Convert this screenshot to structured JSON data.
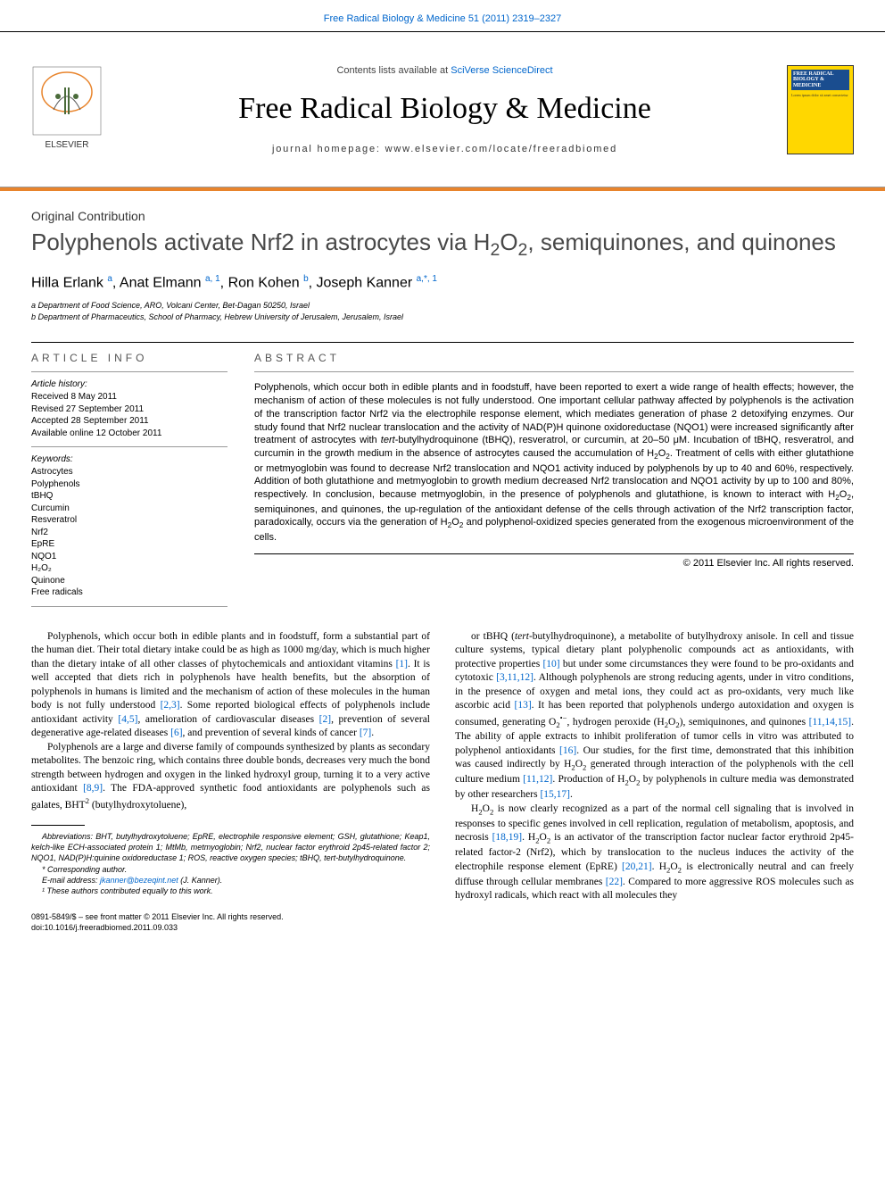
{
  "journal": {
    "top_citation_pre": "Free Radical Biology & Medicine 51 (2011) 2319–2327",
    "contents_line_pre": "Contents lists available at ",
    "contents_line_link": "SciVerse ScienceDirect",
    "name": "Free Radical Biology & Medicine",
    "homepage": "journal homepage: www.elsevier.com/locate/freeradbiomed",
    "cover_label": "FREE RADICAL BIOLOGY & MEDICINE"
  },
  "article": {
    "type": "Original Contribution",
    "title_html": "Polyphenols activate Nrf2 in astrocytes via H<sub>2</sub>O<sub>2</sub>, semiquinones, and quinones",
    "authors_html": "Hilla Erlank <sup>a</sup>, Anat Elmann <sup>a, 1</sup>, Ron Kohen <sup>b</sup>, Joseph Kanner <sup>a,*, 1</sup>",
    "affiliations": [
      "a Department of Food Science, ARO, Volcani Center, Bet-Dagan 50250, Israel",
      "b Department of Pharmaceutics, School of Pharmacy, Hebrew University of Jerusalem, Jerusalem, Israel"
    ],
    "info_head": "ARTICLE INFO",
    "history_label": "Article history:",
    "history": [
      "Received 8 May 2011",
      "Revised 27 September 2011",
      "Accepted 28 September 2011",
      "Available online 12 October 2011"
    ],
    "keywords_label": "Keywords:",
    "keywords": [
      "Astrocytes",
      "Polyphenols",
      "tBHQ",
      "Curcumin",
      "Resveratrol",
      "Nrf2",
      "EpRE",
      "NQO1",
      "H₂O₂",
      "Quinone",
      "Free radicals"
    ],
    "abstract_head": "ABSTRACT",
    "abstract_html": "Polyphenols, which occur both in edible plants and in foodstuff, have been reported to exert a wide range of health effects; however, the mechanism of action of these molecules is not fully understood. One important cellular pathway affected by polyphenols is the activation of the transcription factor Nrf2 via the electrophile response element, which mediates generation of phase 2 detoxifying enzymes. Our study found that Nrf2 nuclear translocation and the activity of NAD(P)H quinone oxidoreductase (NQO1) were increased significantly after treatment of astrocytes with <i>tert</i>-butylhydroquinone (tBHQ), resveratrol, or curcumin, at 20–50 μM. Incubation of tBHQ, resveratrol, and curcumin in the growth medium in the absence of astrocytes caused the accumulation of H<sub>2</sub>O<sub>2</sub>. Treatment of cells with either glutathione or metmyoglobin was found to decrease Nrf2 translocation and NQO1 activity induced by polyphenols by up to 40 and 60%, respectively. Addition of both glutathione and metmyoglobin to growth medium decreased Nrf2 translocation and NQO1 activity by up to 100 and 80%, respectively. In conclusion, because metmyoglobin, in the presence of polyphenols and glutathione, is known to interact with H<sub>2</sub>O<sub>2</sub>, semiquinones, and quinones, the up-regulation of the antioxidant defense of the cells through activation of the Nrf2 transcription factor, paradoxically, occurs via the generation of H<sub>2</sub>O<sub>2</sub> and polyphenol-oxidized species generated from the exogenous microenvironment of the cells.",
    "copyright": "© 2011 Elsevier Inc. All rights reserved."
  },
  "body": {
    "left": [
      "Polyphenols, which occur both in edible plants and in foodstuff, form a substantial part of the human diet. Their total dietary intake could be as high as 1000 mg/day, which is much higher than the dietary intake of all other classes of phytochemicals and antioxidant vitamins <span class='ref'>[1]</span>. It is well accepted that diets rich in polyphenols have health benefits, but the absorption of polyphenols in humans is limited and the mechanism of action of these molecules in the human body is not fully understood <span class='ref'>[2,3]</span>. Some reported biological effects of polyphenols include antioxidant activity <span class='ref'>[4,5]</span>, amelioration of cardiovascular diseases <span class='ref'>[2]</span>, prevention of several degenerative age-related diseases <span class='ref'>[6]</span>, and prevention of several kinds of cancer <span class='ref'>[7]</span>.",
      "Polyphenols are a large and diverse family of compounds synthesized by plants as secondary metabolites. The benzoic ring, which contains three double bonds, decreases very much the bond strength between hydrogen and oxygen in the linked hydroxyl group, turning it to a very active antioxidant <span class='ref'>[8,9]</span>. The FDA-approved synthetic food antioxidants are polyphenols such as galates, BHT<sup>2</sup> (butylhydroxytoluene),"
    ],
    "right": [
      "or tBHQ (<i>tert</i>-butylhydroquinone), a metabolite of butylhydroxy anisole. In cell and tissue culture systems, typical dietary plant polyphenolic compounds act as antioxidants, with protective properties <span class='ref'>[10]</span> but under some circumstances they were found to be pro-oxidants and cytotoxic <span class='ref'>[3,11,12]</span>. Although polyphenols are strong reducing agents, under in vitro conditions, in the presence of oxygen and metal ions, they could act as pro-oxidants, very much like ascorbic acid <span class='ref'>[13]</span>. It has been reported that polyphenols undergo autoxidation and oxygen is consumed, generating O<sub>2</sub><sup>•−</sup>, hydrogen peroxide (H<sub>2</sub>O<sub>2</sub>), semiquinones, and quinones <span class='ref'>[11,14,15]</span>. The ability of apple extracts to inhibit proliferation of tumor cells in vitro was attributed to polyphenol antioxidants <span class='ref'>[16]</span>. Our studies, for the first time, demonstrated that this inhibition was caused indirectly by H<sub>2</sub>O<sub>2</sub> generated through interaction of the polyphenols with the cell culture medium <span class='ref'>[11,12]</span>. Production of H<sub>2</sub>O<sub>2</sub> by polyphenols in culture media was demonstrated by other researchers <span class='ref'>[15,17]</span>.",
      "H<sub>2</sub>O<sub>2</sub> is now clearly recognized as a part of the normal cell signaling that is involved in responses to specific genes involved in cell replication, regulation of metabolism, apoptosis, and necrosis <span class='ref'>[18,19]</span>. H<sub>2</sub>O<sub>2</sub> is an activator of the transcription factor nuclear factor erythroid 2p45-related factor-2 (Nrf2), which by translocation to the nucleus induces the activity of the electrophile response element (EpRE) <span class='ref'>[20,21]</span>. H<sub>2</sub>O<sub>2</sub> is electronically neutral and can freely diffuse through cellular membranes <span class='ref'>[22]</span>. Compared to more aggressive ROS molecules such as hydroxyl radicals, which react with all molecules they"
    ]
  },
  "footnotes": {
    "abbrev": "<i>Abbreviations:</i> BHT, butylhydroxytoluene; EpRE, electrophile responsive element; GSH, glutathione; Keap1, kelch-like ECH-associated protein 1; MtMb, metmyoglobin; Nrf2, nuclear factor erythroid 2p45-related factor 2; NQO1, NAD(P)H:quinine oxidoreductase 1; ROS, reactive oxygen species; tBHQ, <i>tert</i>-butylhydroquinone.",
    "corr": "* Corresponding author.",
    "email_label": "E-mail address: ",
    "email": "jkanner@bezeqint.net",
    "email_after": " (J. Kanner).",
    "equal": "¹ These authors contributed equally to this work."
  },
  "bottom": {
    "l1": "0891-5849/$ – see front matter © 2011 Elsevier Inc. All rights reserved.",
    "l2": "doi:10.1016/j.freeradbiomed.2011.09.033"
  },
  "colors": {
    "link": "#0066cc",
    "orange": "#e8842c",
    "cover_bg": "#ffd700",
    "cover_title_bg": "#1a4d8f"
  }
}
